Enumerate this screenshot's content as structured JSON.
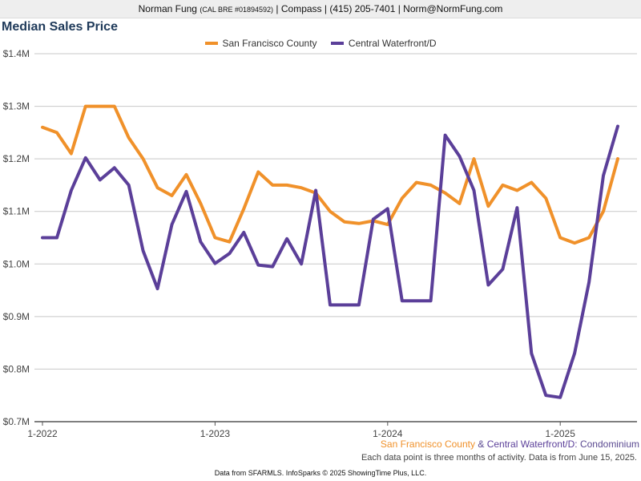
{
  "header": {
    "name": "Norman Fung",
    "license": "(CAL BRE #01894592)",
    "rest": "| Compass | (415) 205-7401 | Norm@NormFung.com"
  },
  "title": "Median Sales Price",
  "caption": {
    "county": "San Francisco County",
    "amp": "&",
    "neighborhood": "Central Waterfront/D:",
    "category": "Condominium",
    "note": "Each data point is three months of activity. Data is from June 15, 2025."
  },
  "footer": "Data from SFARMLS. InfoSparks © 2025 ShowingTime Plus, LLC.",
  "chart_data": {
    "type": "line",
    "title": "Median Sales Price",
    "x_tick_labels": [
      "1-2022",
      "1-2023",
      "1-2024",
      "1-2025"
    ],
    "y_tick_labels": [
      "$0.7M",
      "$0.8M",
      "$0.9M",
      "$1.0M",
      "$1.1M",
      "$1.2M",
      "$1.3M",
      "$1.4M"
    ],
    "y_ticks": [
      0.7,
      0.8,
      0.9,
      1.0,
      1.1,
      1.2,
      1.3,
      1.4
    ],
    "ylim": [
      0.7,
      1.4
    ],
    "x_start": "2022-01",
    "x_end": "2025-05",
    "grid": true,
    "legend_position": "top-center",
    "series": [
      {
        "name": "San Francisco County",
        "color": "#f0912a",
        "values": [
          1.26,
          1.25,
          1.21,
          1.3,
          1.3,
          1.3,
          1.24,
          1.2,
          1.145,
          1.13,
          1.17,
          1.115,
          1.05,
          1.042,
          1.105,
          1.175,
          1.15,
          1.15,
          1.145,
          1.135,
          1.1,
          1.08,
          1.077,
          1.082,
          1.075,
          1.125,
          1.155,
          1.15,
          1.135,
          1.115,
          1.2,
          1.11,
          1.15,
          1.14,
          1.155,
          1.125,
          1.05,
          1.04,
          1.05,
          1.1,
          1.2
        ]
      },
      {
        "name": "Central Waterfront/D",
        "color": "#5b3f99",
        "values": [
          1.05,
          1.05,
          1.14,
          1.202,
          1.16,
          1.183,
          1.15,
          1.025,
          0.953,
          1.075,
          1.138,
          1.042,
          1.001,
          1.02,
          1.06,
          0.998,
          0.995,
          1.048,
          1.0,
          1.14,
          0.922,
          0.922,
          0.922,
          1.085,
          1.105,
          0.93,
          0.93,
          0.93,
          1.245,
          1.205,
          1.14,
          0.96,
          0.99,
          1.107,
          0.83,
          0.75,
          0.746,
          0.83,
          0.965,
          1.168,
          1.262
        ]
      }
    ]
  }
}
